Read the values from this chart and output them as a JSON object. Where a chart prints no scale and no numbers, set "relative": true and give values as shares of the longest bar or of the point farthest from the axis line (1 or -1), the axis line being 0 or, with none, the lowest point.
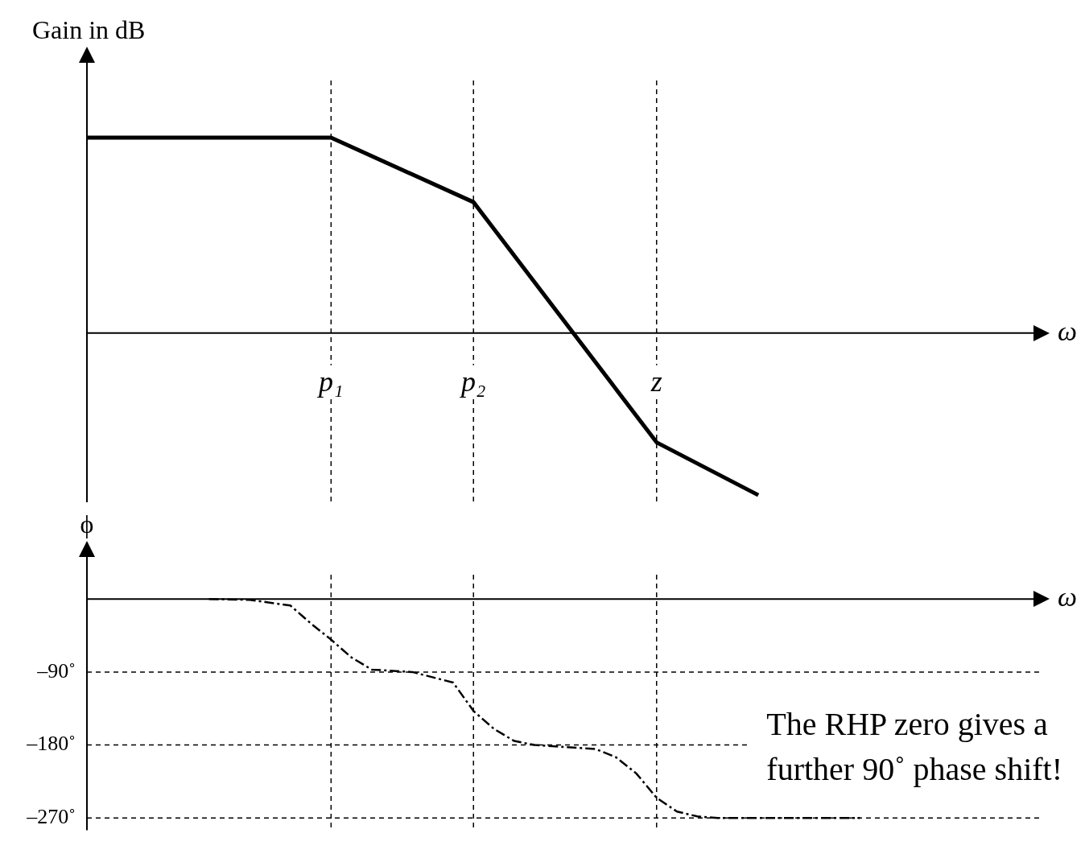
{
  "chart_data": [
    {
      "type": "line",
      "relative": true,
      "ylabel": "Gain in dB",
      "xlabel": "ω",
      "tick_labels": "x",
      "line_style": "solid",
      "categories": [
        null,
        null,
        null,
        null,
        null,
        null,
        null,
        null,
        null,
        null,
        null,
        null,
        "p₁",
        null,
        null,
        null,
        null,
        null,
        null,
        "p₂",
        null,
        null,
        null,
        null,
        null,
        null,
        null,
        null,
        "z",
        null,
        null,
        null,
        null,
        null,
        null,
        null,
        null,
        null,
        null,
        null,
        null,
        null,
        null,
        null,
        null,
        null,
        null,
        null
      ],
      "series": [
        {
          "color": "#000000",
          "values": [
            1,
            null,
            null,
            null,
            null,
            null,
            null,
            null,
            null,
            null,
            null,
            null,
            1,
            null,
            null,
            null,
            null,
            null,
            null,
            0.67,
            null,
            null,
            null,
            null,
            null,
            null,
            null,
            null,
            -0.56,
            null,
            null,
            null,
            null,
            -0.83,
            null,
            null,
            null,
            null,
            null,
            null,
            null,
            null,
            null,
            null,
            null,
            null,
            null,
            null
          ]
        }
      ],
      "ref_lines": [
        {
          "axis": "x",
          "value": "p₁",
          "line_style": "dashed"
        },
        {
          "axis": "x",
          "value": "p₂",
          "line_style": "dashed"
        },
        {
          "axis": "x",
          "value": "z",
          "line_style": "dashed"
        }
      ]
    },
    {
      "type": "line",
      "ylabel": "ϕ",
      "xlabel": "ω",
      "ylim": [
        -285,
        30
      ],
      "tick_labels": "y",
      "line_style": "dashed",
      "categories": [
        null,
        null,
        null,
        null,
        null,
        null,
        null,
        null,
        null,
        null,
        null,
        null,
        "p₁",
        null,
        null,
        null,
        null,
        null,
        null,
        "p₂",
        null,
        null,
        null,
        null,
        null,
        null,
        null,
        null,
        "z",
        null,
        null,
        null,
        null,
        null,
        null,
        null,
        null,
        null,
        null,
        null,
        null,
        null,
        null,
        null,
        null,
        null,
        null,
        null
      ],
      "yticks": [
        {
          "value": -90,
          "label": "–90˚"
        },
        {
          "value": -180,
          "label": "–180˚"
        },
        {
          "value": -270,
          "label": "–270˚"
        }
      ],
      "series": [
        {
          "color": "#000000",
          "values": [
            null,
            null,
            null,
            null,
            null,
            null,
            0,
            null,
            -1,
            null,
            -8,
            -30,
            -50,
            -72,
            -87,
            null,
            -90,
            null,
            -103,
            -138,
            -160,
            -175,
            -180,
            null,
            null,
            -185,
            -195,
            -215,
            -245,
            -262,
            -268,
            -270,
            null,
            null,
            null,
            null,
            null,
            null,
            -270,
            null,
            null,
            null,
            null,
            null,
            null,
            null,
            null,
            null
          ]
        }
      ],
      "ref_lines": [
        {
          "axis": "x",
          "value": "p₁",
          "line_style": "dashed"
        },
        {
          "axis": "x",
          "value": "p₂",
          "line_style": "dashed"
        },
        {
          "axis": "x",
          "value": "z",
          "line_style": "dashed"
        },
        {
          "axis": "y",
          "value": -90,
          "line_style": "dashed"
        },
        {
          "axis": "y",
          "value": -180,
          "line_style": "dashed"
        },
        {
          "axis": "y",
          "value": -270,
          "line_style": "dashed"
        }
      ],
      "annotations": [
        "The RHP zero gives a further 90˚ phase shift!"
      ]
    }
  ]
}
